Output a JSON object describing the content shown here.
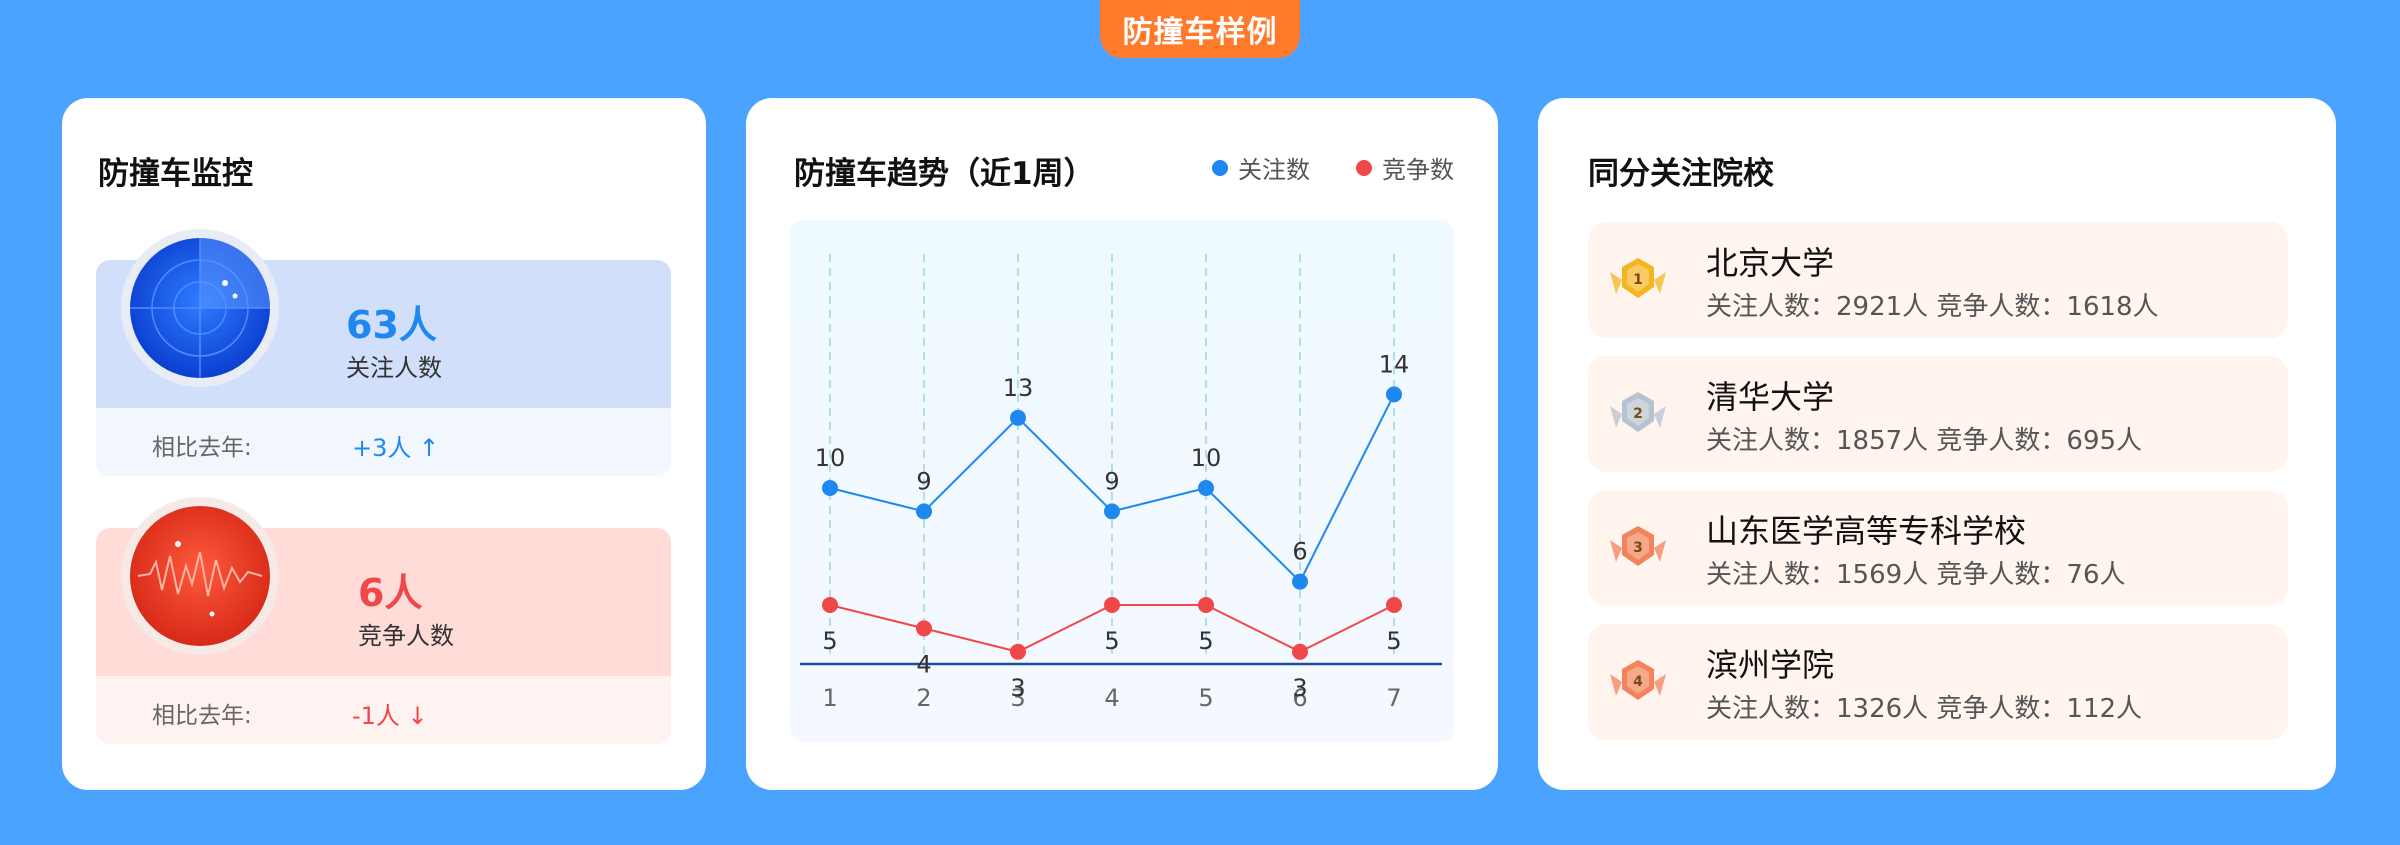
{
  "page": {
    "title": "防撞车样例"
  },
  "monitor": {
    "title": "防撞车监控",
    "follow": {
      "value": "63人",
      "label": "关注人数",
      "cmp_label": "相比去年:",
      "cmp_value": "+3人 ↑"
    },
    "compete": {
      "value": "6人",
      "label": "竞争人数",
      "cmp_label": "相比去年:",
      "cmp_value": "-1人 ↓"
    }
  },
  "trend": {
    "title": "防撞车趋势（近1周）",
    "legend": [
      {
        "name": "关注数",
        "color": "#1e88f0"
      },
      {
        "name": "竞争数",
        "color": "#f04848"
      }
    ]
  },
  "chart_data": {
    "type": "line",
    "title": "防撞车趋势（近1周）",
    "x": [
      1,
      2,
      3,
      4,
      5,
      6,
      7
    ],
    "series": [
      {
        "name": "关注数",
        "color": "#1e88f0",
        "values": [
          10,
          9,
          13,
          9,
          10,
          6,
          14
        ]
      },
      {
        "name": "竞争数",
        "color": "#f04848",
        "values": [
          5,
          4,
          3,
          5,
          5,
          3,
          5
        ]
      }
    ],
    "grid": "vertical-dashed",
    "legend_position": "top-right"
  },
  "schools": {
    "title": "同分关注院校",
    "items": [
      {
        "rank": "1",
        "name": "北京大学",
        "stats": "关注人数：2921人  竞争人数：1618人",
        "medal_color": "#f5b521"
      },
      {
        "rank": "2",
        "name": "清华大学",
        "stats": "关注人数：1857人  竞争人数：695人",
        "medal_color": "#b7c2cf"
      },
      {
        "rank": "3",
        "name": "山东医学高等专科学校",
        "stats": "关注人数：1569人  竞争人数：76人",
        "medal_color": "#f2835a"
      },
      {
        "rank": "4",
        "name": "滨州学院",
        "stats": "关注人数：1326人  竞争人数：112人",
        "medal_color": "#f2835a"
      }
    ]
  }
}
